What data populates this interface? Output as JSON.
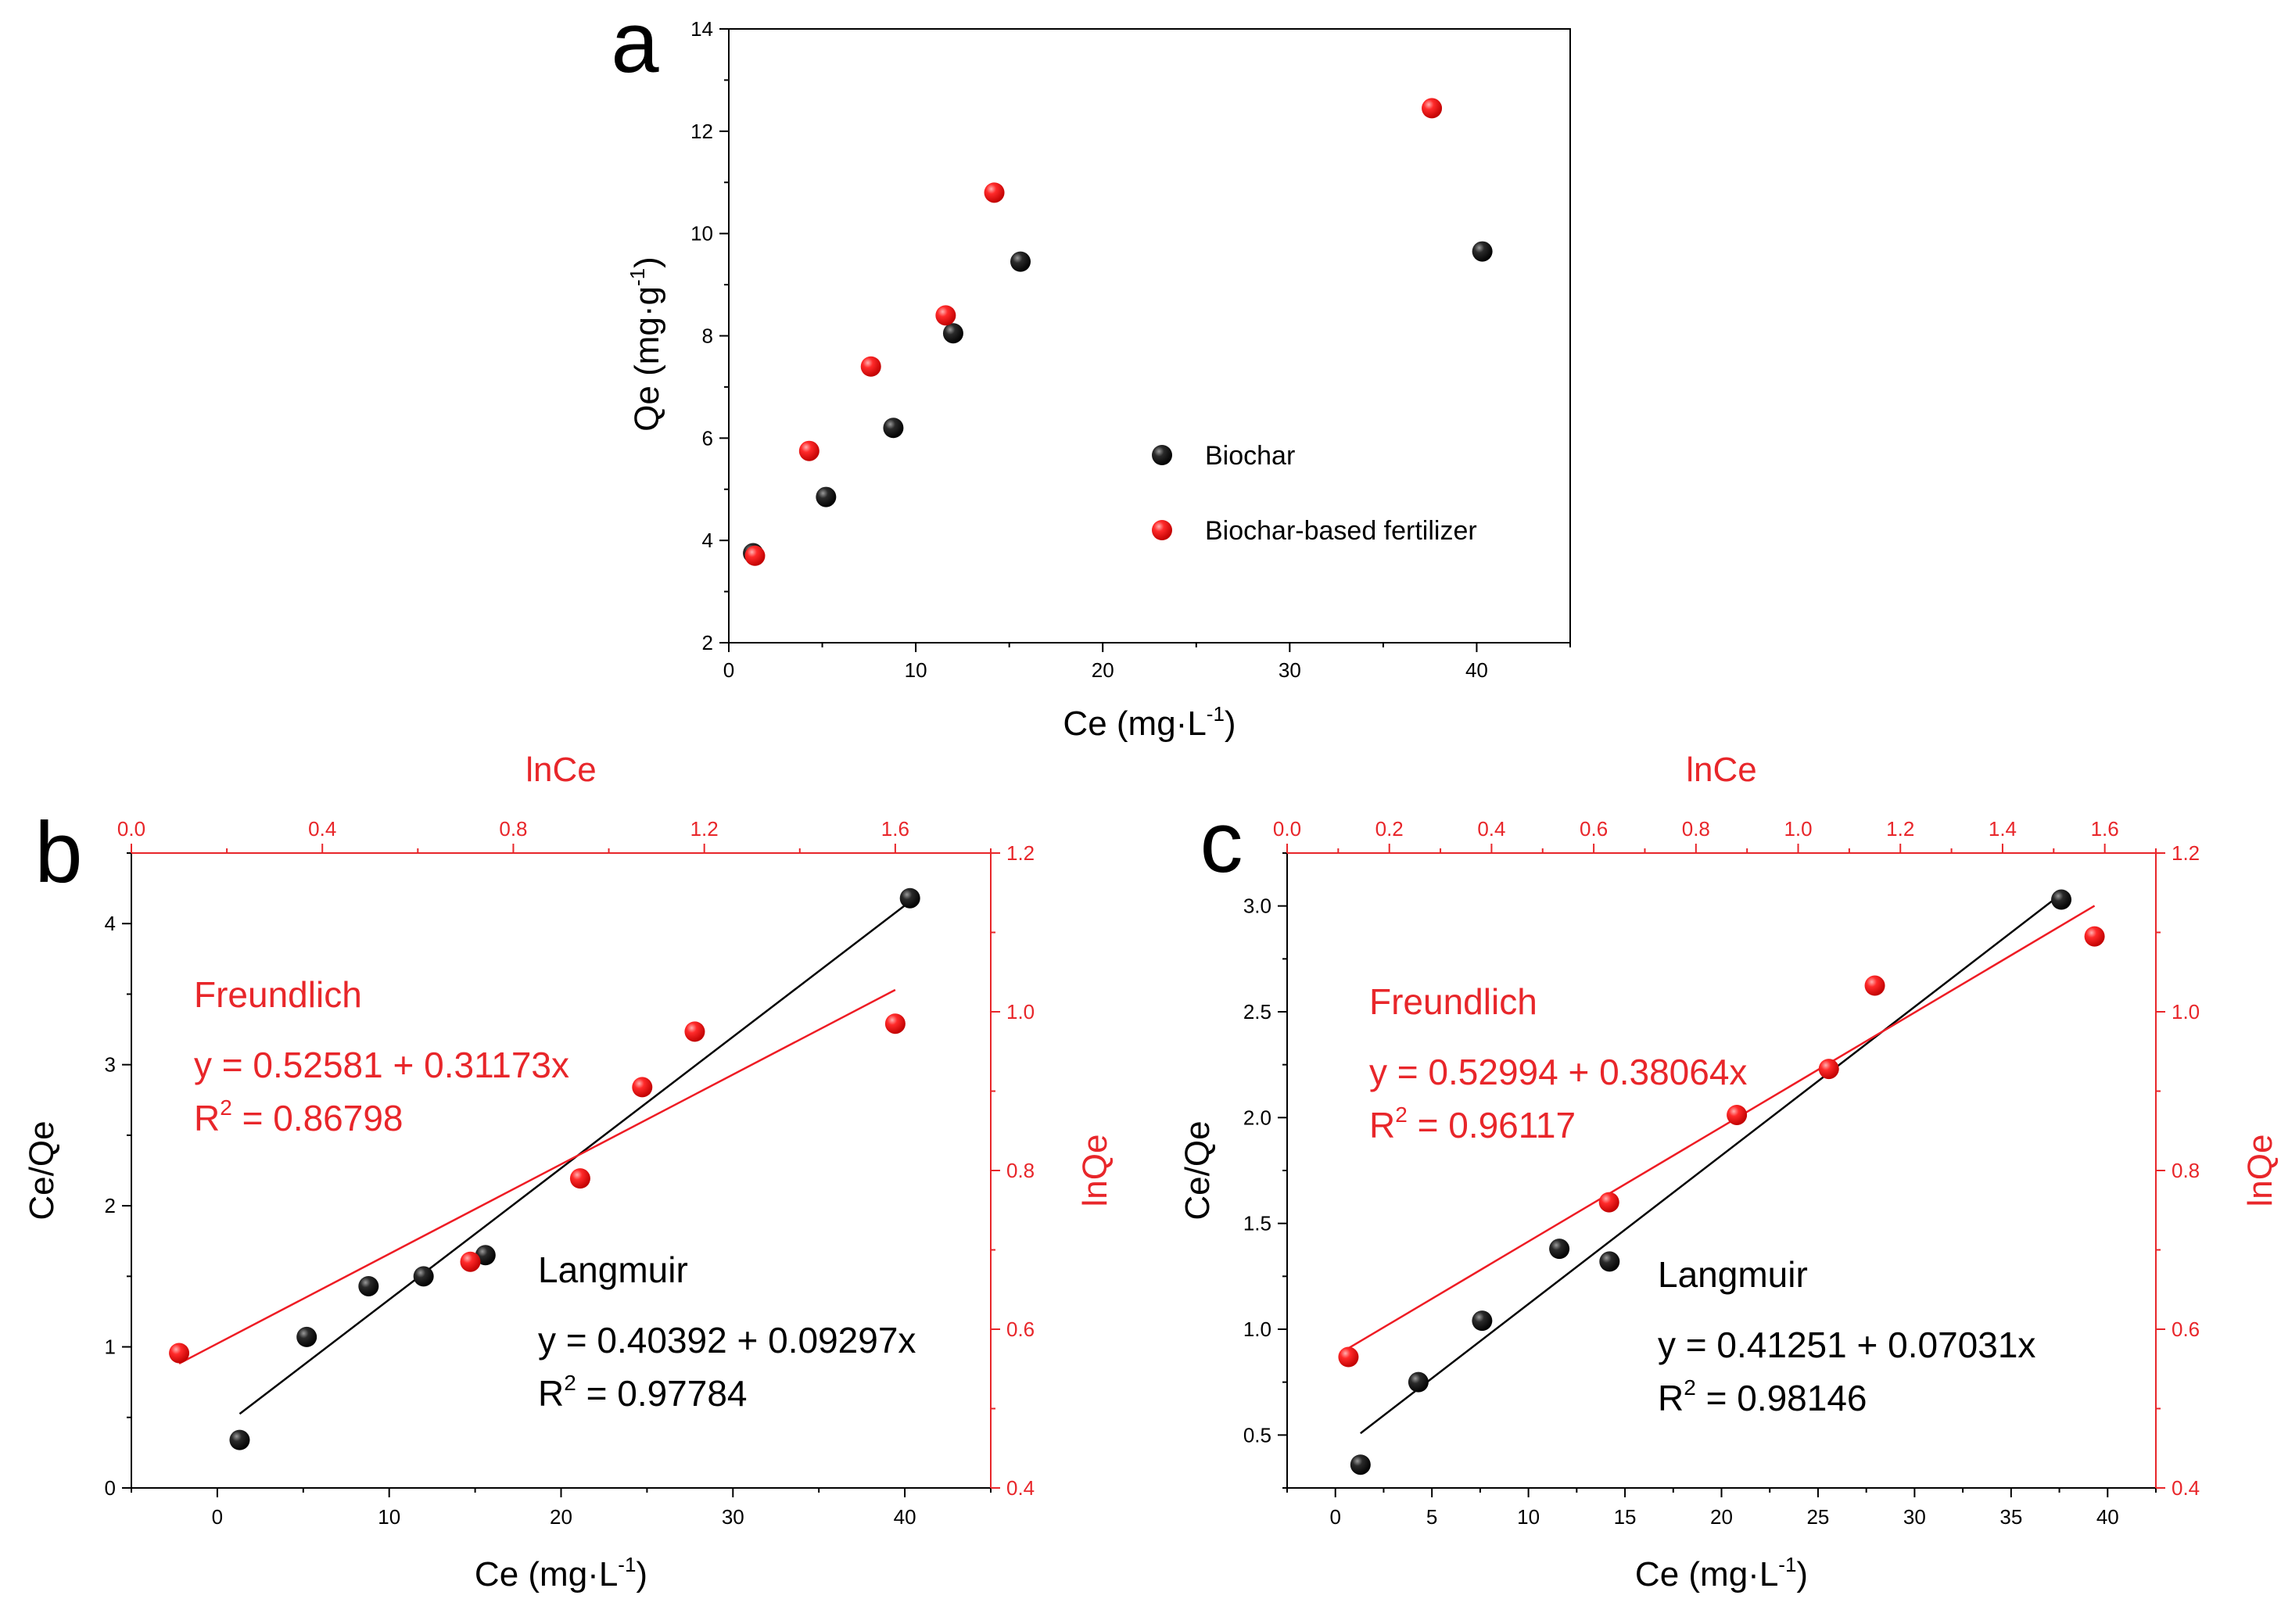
{
  "colors": {
    "black_series": "#000000",
    "red_series": "#ee1c24",
    "axis_red": "#e8262a"
  },
  "chart_data": [
    {
      "id": "a",
      "type": "scatter",
      "panel_label": "a",
      "xlabel": "Ce (mg·L",
      "xlabel_sup": "-1",
      "xlabel_end": ")",
      "ylabel": "Qe (mg·g",
      "ylabel_sup": "-1",
      "ylabel_end": ")",
      "xlim": [
        0,
        45
      ],
      "ylim": [
        2,
        14
      ],
      "xticks": [
        "0",
        "10",
        "20",
        "30",
        "40"
      ],
      "yticks": [
        "2",
        "4",
        "6",
        "8",
        "10",
        "12",
        "14"
      ],
      "legend_position": "right",
      "series": [
        {
          "name": "Biochar",
          "color": "black",
          "x": [
            1.3,
            5.2,
            8.8,
            12.0,
            15.6,
            40.3
          ],
          "y": [
            3.75,
            4.85,
            6.2,
            8.05,
            9.45,
            9.65
          ]
        },
        {
          "name": "Biochar-based fertilizer",
          "color": "red",
          "x": [
            1.4,
            4.3,
            7.6,
            11.6,
            14.2,
            37.6
          ],
          "y": [
            3.7,
            5.75,
            7.4,
            8.4,
            10.8,
            12.45
          ]
        }
      ]
    },
    {
      "id": "b",
      "type": "scatter",
      "panel_label": "b",
      "xlabel": "Ce (mg·L",
      "xlabel_sup": "-1",
      "xlabel_end": ")",
      "ylabel": "Ce/Qe",
      "top_xlabel": "lnCe",
      "right_ylabel": "lnQe",
      "xlim": [
        -5,
        45
      ],
      "ylim": [
        0,
        4.5
      ],
      "top_xlim": [
        0.0,
        1.8
      ],
      "right_ylim": [
        0.4,
        1.2
      ],
      "xticks": [
        "0",
        "10",
        "20",
        "30",
        "40"
      ],
      "yticks": [
        "0",
        "1",
        "2",
        "3",
        "4"
      ],
      "top_xticks": [
        "0.0",
        "0.4",
        "0.8",
        "1.2",
        "1.6"
      ],
      "right_yticks": [
        "0.4",
        "0.6",
        "0.8",
        "1.0",
        "1.2"
      ],
      "series": [
        {
          "name": "Langmuir",
          "color": "black",
          "x": [
            1.3,
            5.2,
            8.8,
            12.0,
            15.6,
            40.3
          ],
          "y": [
            0.34,
            1.07,
            1.43,
            1.5,
            1.65,
            4.18
          ],
          "fit": {
            "x0": 1.3,
            "x1": 40.3
          }
        },
        {
          "name": "Freundlich",
          "color": "red",
          "lnx": [
            0.1,
            0.71,
            0.94,
            1.07,
            1.18,
            1.6
          ],
          "lny": [
            0.57,
            0.685,
            0.79,
            0.905,
            0.975,
            0.985
          ],
          "fit": {
            "x0": 0.1,
            "x1": 1.6
          }
        }
      ],
      "annotations": {
        "freundlich_title": "Freundlich",
        "freundlich_eq": "y = 0.52581 + 0.31173x",
        "freundlich_r2_prefix": "R",
        "freundlich_r2_sup": "2",
        "freundlich_r2_value": " = 0.86798",
        "langmuir_title": "Langmuir",
        "langmuir_eq": "y = 0.40392 + 0.09297x",
        "langmuir_r2_prefix": "R",
        "langmuir_r2_sup": "2",
        "langmuir_r2_value": " = 0.97784"
      }
    },
    {
      "id": "c",
      "type": "scatter",
      "panel_label": "c",
      "xlabel": "Ce (mg·L",
      "xlabel_sup": "-1",
      "xlabel_end": ")",
      "ylabel": "Ce/Qe",
      "top_xlabel": "lnCe",
      "right_ylabel": "lnQe",
      "xlim": [
        -2.5,
        42.5
      ],
      "ylim": [
        0.25,
        3.25
      ],
      "top_xlim": [
        0.0,
        1.7
      ],
      "right_ylim": [
        0.4,
        1.2
      ],
      "xticks": [
        "0",
        "5",
        "10",
        "15",
        "20",
        "25",
        "30",
        "35",
        "40"
      ],
      "yticks": [
        "0.5",
        "1.0",
        "1.5",
        "2.0",
        "2.5",
        "3.0"
      ],
      "top_xticks": [
        "0.0",
        "0.2",
        "0.4",
        "0.6",
        "0.8",
        "1.0",
        "1.2",
        "1.4",
        "1.6"
      ],
      "right_yticks": [
        "0.4",
        "0.6",
        "0.8",
        "1.0",
        "1.2"
      ],
      "series": [
        {
          "name": "Langmuir",
          "color": "black",
          "x": [
            1.3,
            4.3,
            7.6,
            11.6,
            14.2,
            37.6
          ],
          "y": [
            0.36,
            0.75,
            1.04,
            1.38,
            1.32,
            3.03
          ],
          "fit": {
            "x0": 1.3,
            "x1": 37.6
          }
        },
        {
          "name": "Freundlich",
          "color": "red",
          "lnx": [
            0.12,
            0.63,
            0.88,
            1.06,
            1.15,
            1.58
          ],
          "lny": [
            0.565,
            0.76,
            0.87,
            0.928,
            1.033,
            1.095
          ],
          "fit": {
            "x0": 0.12,
            "x1": 1.58
          }
        }
      ],
      "annotations": {
        "freundlich_title": "Freundlich",
        "freundlich_eq": "y = 0.52994 + 0.38064x",
        "freundlich_r2_prefix": "R",
        "freundlich_r2_sup": "2",
        "freundlich_r2_value": " = 0.96117",
        "langmuir_title": "Langmuir",
        "langmuir_eq": "y = 0.41251 + 0.07031x",
        "langmuir_r2_prefix": "R",
        "langmuir_r2_sup": "2",
        "langmuir_r2_value": " = 0.98146"
      }
    }
  ]
}
